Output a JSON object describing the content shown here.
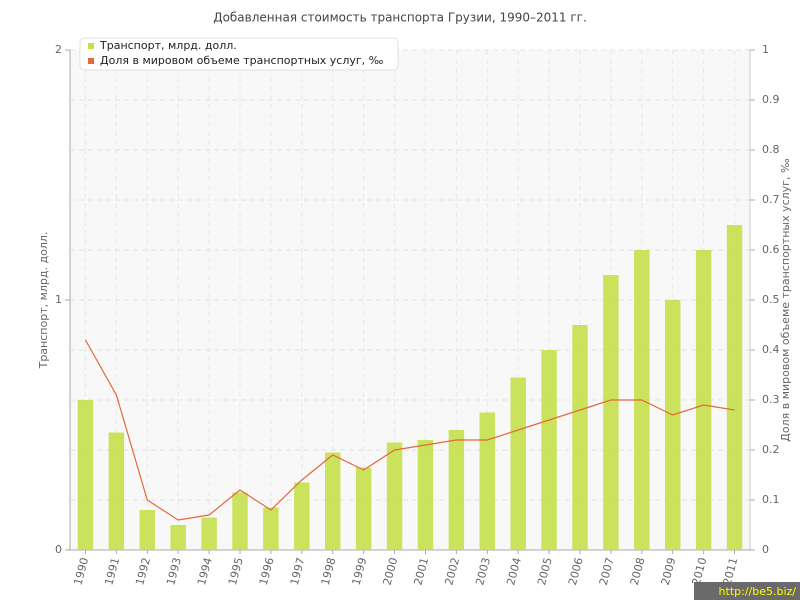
{
  "chart_data": {
    "type": "bar-line",
    "title": "Добавленная стоимость транспорта Грузии, 1990–2011 гг.",
    "y_label": "Транспорт, млрд. долл.",
    "y2_label": "Доля в мировом объеме транспортных услуг, ‰",
    "watermark": "http://be5.biz/",
    "categories": [
      "1990",
      "1991",
      "1992",
      "1993",
      "1994",
      "1995",
      "1996",
      "1997",
      "1998",
      "1999",
      "2000",
      "2001",
      "2002",
      "2003",
      "2004",
      "2005",
      "2006",
      "2007",
      "2008",
      "2009",
      "2010",
      "2011"
    ],
    "series": [
      {
        "name": "Транспорт, млрд. долл.",
        "type": "bar",
        "color": "#c5e04a",
        "values": [
          0.6,
          0.47,
          0.16,
          0.1,
          0.13,
          0.23,
          0.17,
          0.27,
          0.39,
          0.33,
          0.43,
          0.44,
          0.48,
          0.55,
          0.69,
          0.8,
          0.9,
          1.1,
          1.2,
          1.0,
          1.2,
          1.3
        ]
      },
      {
        "name": "Доля в мировом объеме транспортных услуг, ‰",
        "type": "line",
        "axis": "y2",
        "color": "#e06a3c",
        "values": [
          0.42,
          0.31,
          0.1,
          0.06,
          0.07,
          0.12,
          0.08,
          0.14,
          0.19,
          0.16,
          0.2,
          0.21,
          0.22,
          0.22,
          0.24,
          0.26,
          0.28,
          0.3,
          0.3,
          0.27,
          0.29,
          0.28
        ]
      }
    ],
    "ylim": [
      0,
      2
    ],
    "yticks": [
      0,
      1,
      2
    ],
    "y2lim": [
      0,
      1
    ],
    "y2ticks": [
      0,
      0.1,
      0.2,
      0.3,
      0.4,
      0.5,
      0.6,
      0.7,
      0.8,
      0.9,
      1
    ],
    "grid": true,
    "legend": "top-left"
  }
}
